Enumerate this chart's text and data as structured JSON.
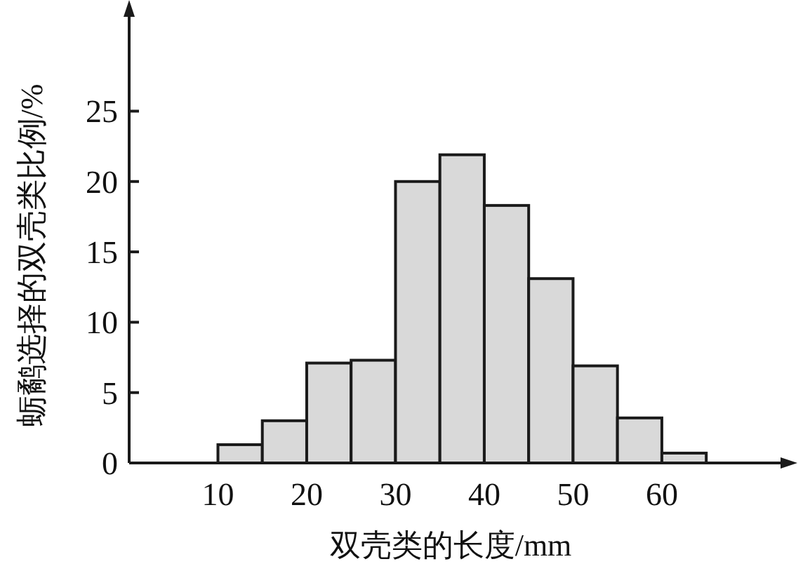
{
  "chart_data": {
    "type": "histogram",
    "xlabel": "双壳类的长度/mm",
    "ylabel": "蛎鹬选择的双壳类比例/%",
    "bins": [
      10,
      15,
      20,
      25,
      30,
      35,
      40,
      45,
      50,
      55,
      60,
      65
    ],
    "values": [
      1.3,
      3,
      7.1,
      7.3,
      20,
      21.9,
      18.3,
      13.1,
      6.9,
      3.2,
      0.7
    ],
    "color": "#d9d9d9",
    "xlim": [
      0,
      74
    ],
    "xticks": [
      10,
      20,
      30,
      40,
      50,
      60
    ],
    "ylim": [
      0,
      32.5
    ],
    "yticks": [
      0,
      5,
      10,
      15,
      20,
      25
    ],
    "grid": false
  }
}
